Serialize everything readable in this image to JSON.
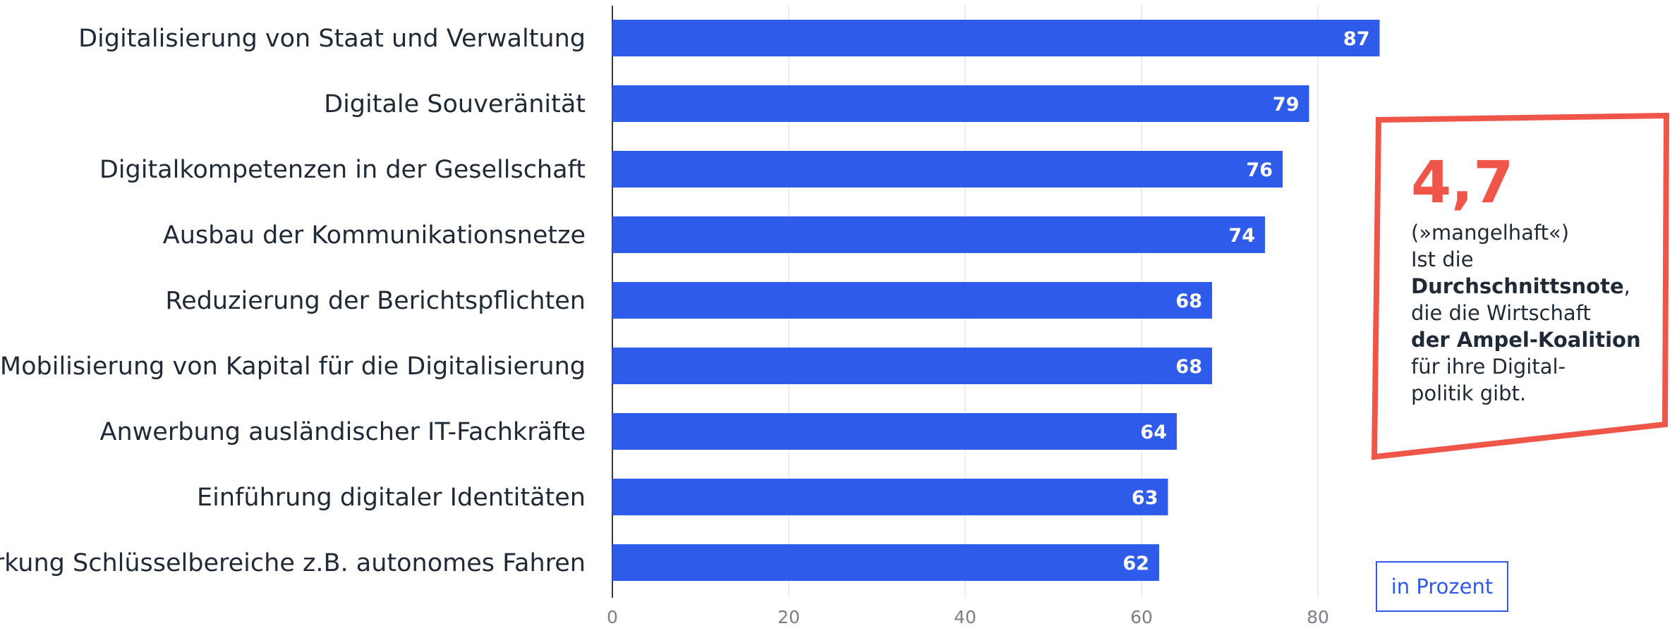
{
  "chart_data": {
    "type": "bar",
    "orientation": "horizontal",
    "categories": [
      "Digitalisierung von Staat und Verwaltung",
      "Digitale Souveränität",
      "Digitalkompetenzen in der Gesellschaft",
      "Ausbau der Kommunikationsnetze",
      "Reduzierung der Berichtspflichten",
      "Mobilisierung von Kapital für die Digitalisierung",
      "Anwerbung ausländischer IT-Fachkräfte",
      "Einführung digitaler Identitäten",
      "Stärkung Schlüsselbereiche z.B. autonomes Fahren"
    ],
    "values": [
      87,
      79,
      76,
      74,
      68,
      68,
      64,
      63,
      62
    ],
    "value_labels": [
      "87",
      "79",
      "76",
      "74",
      "68",
      "68",
      "64",
      "63",
      "62"
    ],
    "xlim": [
      0,
      85
    ],
    "xticks": [
      "0",
      "20",
      "40",
      "60",
      "80"
    ],
    "grid": true,
    "bar_color": "#2f5bea"
  },
  "callout": {
    "value": "4,7",
    "grade": "(»mangelhaft«)",
    "line1": "Ist die",
    "bold1": "Durchschnittsnote",
    "comma": ",",
    "line2": "die die Wirtschaft",
    "bold2": "der Ampel-Koalition",
    "line3": "für ihre Digital-",
    "line4": "politik gibt.",
    "accent_color": "#f0554a"
  },
  "unit_label": "in Prozent"
}
